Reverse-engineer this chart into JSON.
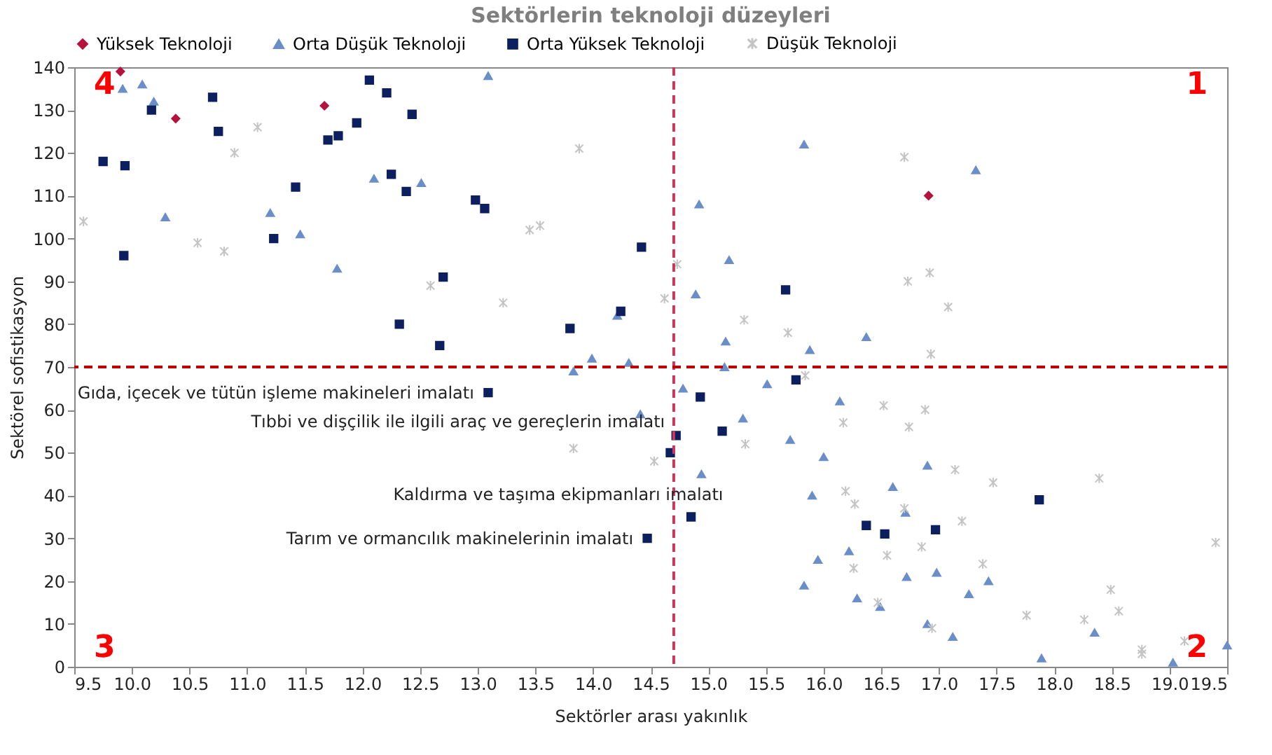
{
  "chart_data": {
    "type": "scatter",
    "title": "Sektörlerin teknoloji düzeyleri",
    "xlabel": "Sektörler arası yakınlık",
    "ylabel": "Sektörel sofistikasyon",
    "xlim": [
      9.5,
      19.5
    ],
    "xticks": [
      9.5,
      {
        "value": 10,
        "label": "10.0"
      },
      10.5,
      {
        "value": 11,
        "label": "11.0"
      },
      11.5,
      {
        "value": 12,
        "label": "12.0"
      },
      12.5,
      {
        "value": 13,
        "label": "13.0"
      },
      13.5,
      {
        "value": 14,
        "label": "14.0"
      },
      14.5,
      {
        "value": 15,
        "label": "15.0"
      },
      15.5,
      {
        "value": 16,
        "label": "16.0"
      },
      16.5,
      {
        "value": 17,
        "label": "17.0"
      },
      17.5,
      {
        "value": 18,
        "label": "18.0"
      },
      18.5,
      {
        "value": 19,
        "label": "19.0"
      },
      19.5
    ],
    "ylim": [
      0,
      140
    ],
    "yticks": [
      0,
      10,
      20,
      30,
      40,
      50,
      60,
      70,
      80,
      90,
      100,
      110,
      120,
      130,
      140
    ],
    "grid": false,
    "legend": "top",
    "series": [
      {
        "name": "Yüksek Teknoloji",
        "color": "#b5123e",
        "marker": "diamond",
        "x": [
          9.9,
          10.38,
          11.67,
          16.91
        ],
        "values": [
          139,
          128,
          131,
          110
        ]
      },
      {
        "name": "Orta Düşük Teknoloji",
        "color": "#6a8ec8",
        "marker": "triangle",
        "x": [
          9.92,
          10.09,
          10.19,
          10.29,
          11.2,
          11.46,
          11.78,
          12.1,
          12.51,
          13.09,
          14.21,
          13.99,
          14.31,
          13.83,
          14.92,
          15.83,
          15.18,
          14.89,
          15.15,
          15.88,
          15.14,
          14.78,
          15.51,
          16.14,
          14.41,
          15.3,
          15.71,
          16.0,
          14.94,
          15.9,
          15.95,
          15.83,
          16.37,
          17.32,
          16.9,
          16.6,
          16.71,
          16.22,
          16.72,
          16.98,
          17.43,
          16.29,
          17.26,
          16.49,
          16.9,
          17.12,
          18.35,
          17.89,
          19.03,
          19.5
        ],
        "values": [
          135,
          136,
          132,
          105,
          106,
          101,
          93,
          114,
          113,
          138,
          82,
          72,
          71,
          69,
          108,
          122,
          95,
          87,
          76,
          74,
          70,
          65,
          66,
          62,
          59,
          58,
          53,
          49,
          45,
          40,
          25,
          19,
          77,
          116,
          47,
          42,
          36,
          27,
          21,
          22,
          20,
          16,
          17,
          14,
          10,
          7,
          8,
          2,
          1,
          5
        ]
      },
      {
        "name": "Orta Yüksek Teknoloji",
        "color": "#0c1f5e",
        "marker": "square",
        "x": [
          9.75,
          9.94,
          9.93,
          10.17,
          10.7,
          10.75,
          11.42,
          11.23,
          11.7,
          11.79,
          11.95,
          12.06,
          12.21,
          12.43,
          12.25,
          12.38,
          12.7,
          12.32,
          12.67,
          12.98,
          13.06,
          14.42,
          14.24,
          13.8,
          15.67,
          15.76,
          13.09,
          14.93,
          14.72,
          15.12,
          14.67,
          14.85,
          14.47,
          16.37,
          16.53,
          16.97,
          17.87
        ],
        "values": [
          118,
          117,
          96,
          130,
          133,
          125,
          112,
          100,
          123,
          124,
          127,
          137,
          134,
          129,
          115,
          111,
          91,
          80,
          75,
          109,
          107,
          98,
          83,
          79,
          88,
          67,
          64,
          63,
          54,
          55,
          50,
          35,
          30,
          33,
          31,
          32,
          39
        ]
      },
      {
        "name": "Düşük Teknoloji",
        "color": "#c4c4c4",
        "marker": "cross",
        "x": [
          9.58,
          10.57,
          10.8,
          10.89,
          11.09,
          12.59,
          13.88,
          13.45,
          13.54,
          13.22,
          14.73,
          14.62,
          15.31,
          15.69,
          15.84,
          15.32,
          13.83,
          14.53,
          16.7,
          16.92,
          16.73,
          17.08,
          16.93,
          16.52,
          16.88,
          16.17,
          16.74,
          17.14,
          17.47,
          18.39,
          16.19,
          16.27,
          16.7,
          17.2,
          16.85,
          16.55,
          16.26,
          17.38,
          19.4,
          16.47,
          18.49,
          18.56,
          17.76,
          18.26,
          16.94,
          19.13,
          18.76,
          18.76
        ],
        "values": [
          104,
          99,
          97,
          120,
          126,
          89,
          121,
          102,
          103,
          85,
          94,
          86,
          81,
          78,
          68,
          52,
          51,
          48,
          119,
          92,
          90,
          84,
          73,
          61,
          60,
          57,
          56,
          46,
          43,
          44,
          41,
          38,
          37,
          34,
          28,
          26,
          23,
          24,
          29,
          15,
          18,
          13,
          12,
          11,
          9,
          6,
          4,
          3
        ]
      }
    ],
    "ref_lines": [
      {
        "axis": "x",
        "value": 14.7,
        "color": "#c8385e",
        "line_style": "dashed"
      },
      {
        "axis": "y",
        "value": 70,
        "color": "#c00000",
        "line_style": "dashed"
      }
    ],
    "annotations": [
      "4",
      "1",
      "3",
      "2",
      {
        "text": "Gıda, içecek ve tütün işleme makineleri imalatı",
        "x": 13.09,
        "y": 64
      },
      {
        "text": "Tıbbi ve dişçilik ile ilgili araç ve gereçlerin imalatı",
        "x": 14.72,
        "y": 54
      },
      {
        "text": "Kaldırma ve taşıma ekipmanları imalatı",
        "x": 14.67,
        "y": 50
      },
      {
        "text": "Tarım ve ormancılık makinelerinin imalatı",
        "x": 14.47,
        "y": 30
      }
    ]
  }
}
